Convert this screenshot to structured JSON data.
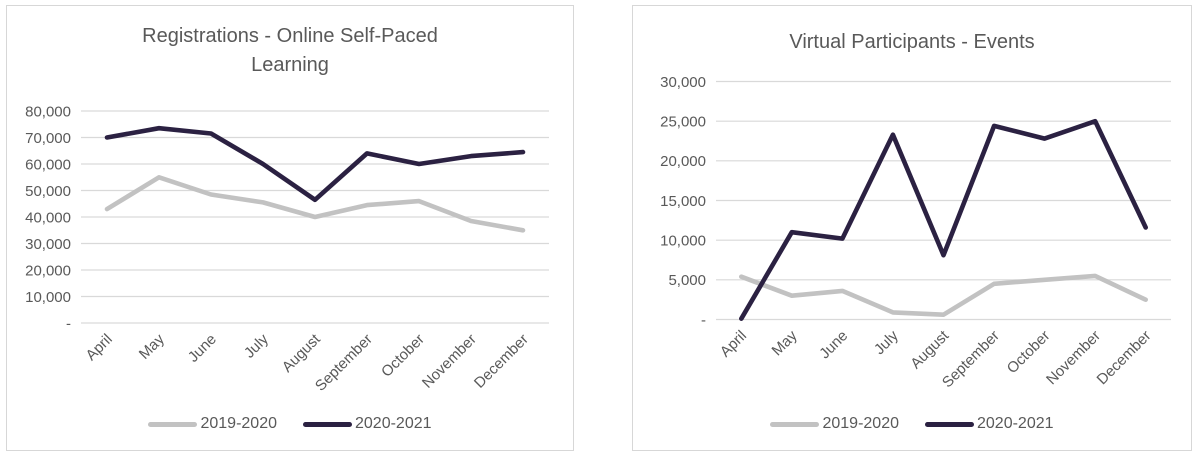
{
  "page": {
    "background": "#ffffff",
    "text_color": "#595959",
    "gridline_color": "#d9d9d9",
    "panel_border_color": "#d7d7d7"
  },
  "chart_data": [
    {
      "type": "line",
      "title": "Registrations - Online Self-Paced Learning",
      "categories": [
        "April",
        "May",
        "June",
        "July",
        "August",
        "September",
        "October",
        "November",
        "December"
      ],
      "series": [
        {
          "name": "2019-2020",
          "color": "#c2c2c2",
          "values": [
            43000,
            55000,
            48500,
            45500,
            40000,
            44500,
            46000,
            38500,
            35000
          ]
        },
        {
          "name": "2020-2021",
          "color": "#2b2142",
          "values": [
            70000,
            73500,
            71500,
            60000,
            46500,
            64000,
            60000,
            63000,
            64500
          ]
        }
      ],
      "ylim": [
        0,
        80000
      ],
      "ytick_step": 10000,
      "ytick_labels": [
        "-",
        "10,000",
        "20,000",
        "30,000",
        "40,000",
        "50,000",
        "60,000",
        "70,000",
        "80,000"
      ],
      "xlabel": "",
      "ylabel": "",
      "grid": true,
      "legend_position": "bottom"
    },
    {
      "type": "line",
      "title": "Virtual Participants - Events",
      "categories": [
        "April",
        "May",
        "June",
        "July",
        "August",
        "September",
        "October",
        "November",
        "December"
      ],
      "series": [
        {
          "name": "2019-2020",
          "color": "#c2c2c2",
          "values": [
            5400,
            3000,
            3600,
            900,
            600,
            4500,
            5000,
            5500,
            2500
          ]
        },
        {
          "name": "2020-2021",
          "color": "#2b2142",
          "values": [
            100,
            11000,
            10200,
            23300,
            8100,
            24400,
            22800,
            25000,
            11600
          ]
        }
      ],
      "ylim": [
        0,
        30000
      ],
      "ytick_step": 5000,
      "ytick_labels": [
        "-",
        "5,000",
        "10,000",
        "15,000",
        "20,000",
        "25,000",
        "30,000"
      ],
      "xlabel": "",
      "ylabel": "",
      "grid": true,
      "legend_position": "bottom"
    }
  ]
}
